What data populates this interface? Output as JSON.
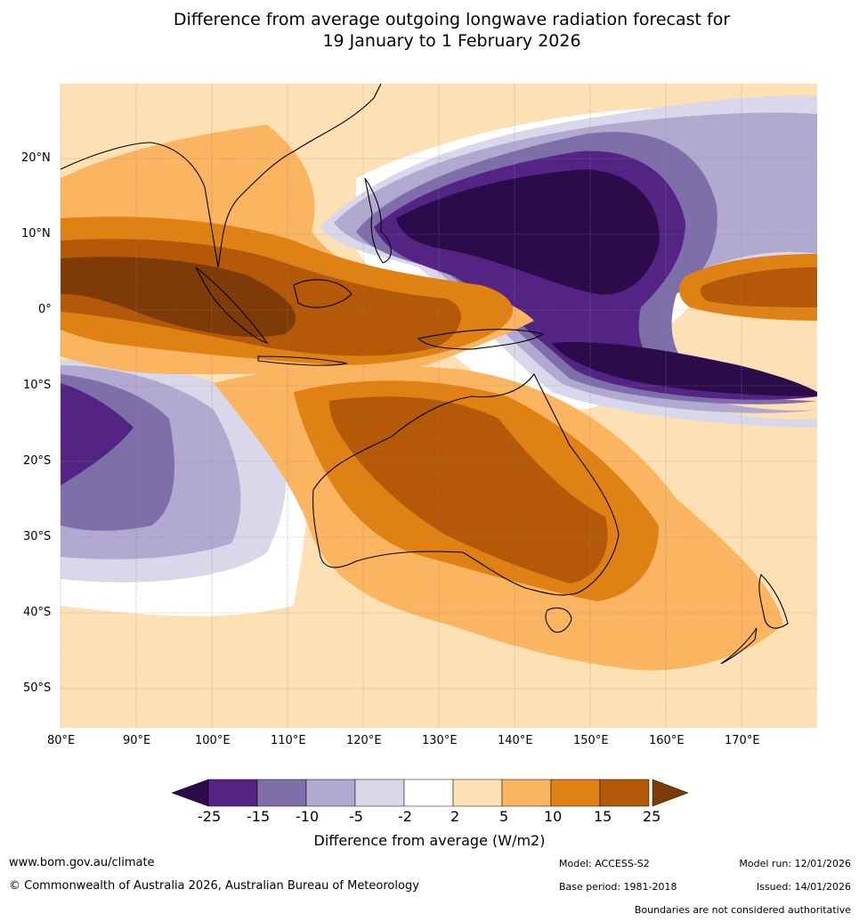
{
  "title": {
    "line1": "Difference from average outgoing longwave radiation forecast for",
    "line2": "19 January to 1 February 2026"
  },
  "map": {
    "lat_labels": [
      "20°N",
      "10°N",
      "0°",
      "10°S",
      "20°S",
      "30°S",
      "40°S",
      "50°S"
    ],
    "lon_labels": [
      "80°E",
      "90°E",
      "100°E",
      "110°E",
      "120°E",
      "130°E",
      "140°E",
      "150°E",
      "160°E",
      "170°E"
    ],
    "lon_range": [
      80,
      180
    ],
    "lat_range": [
      -55,
      30
    ]
  },
  "legend": {
    "title": "Difference from average (W/m2)",
    "ticks": [
      "-25",
      "-15",
      "-10",
      "-5",
      "-2",
      "2",
      "5",
      "10",
      "15",
      "25"
    ],
    "colors": [
      "#2b0b4a",
      "#542485",
      "#7e6ea9",
      "#b1a9d0",
      "#d9d8ea",
      "#ffffff",
      "#fde0b3",
      "#fbb45f",
      "#e08114",
      "#b45907",
      "#7e3b08"
    ]
  },
  "footer": {
    "url": "www.bom.gov.au/climate",
    "copyright": "© Commonwealth of Australia 2026, Australian Bureau of Meteorology",
    "model": "Model: ACCESS-S2",
    "model_run": "Model run: 12/01/2026",
    "base_period": "Base period: 1981-2018",
    "issued": "Issued: 14/01/2026",
    "disclaimer": "Boundaries are not considered authoritative"
  }
}
